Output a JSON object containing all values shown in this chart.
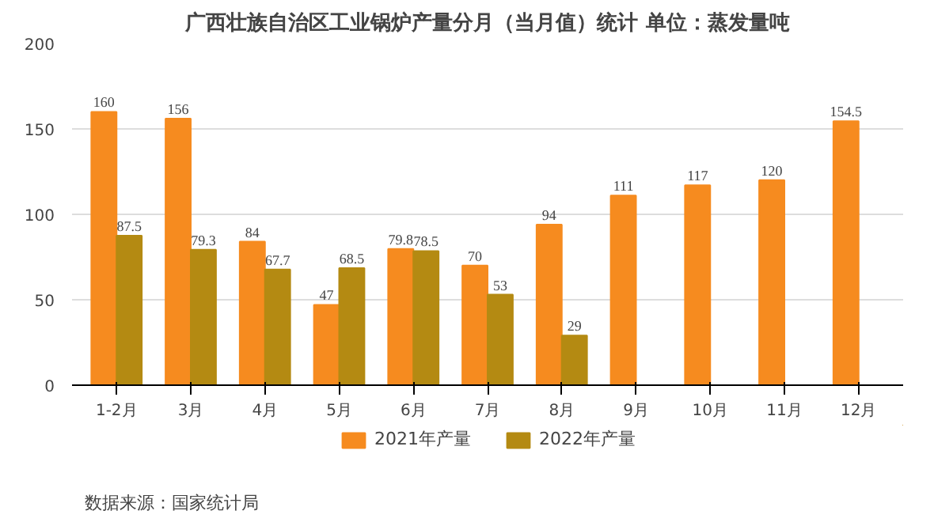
{
  "chart_data": {
    "type": "bar",
    "title": "广西壮族自治区工业锅炉产量分月（当月值）统计 单位：蒸发量吨",
    "categories": [
      "1-2月",
      "3月",
      "4月",
      "5月",
      "6月",
      "7月",
      "8月",
      "9月",
      "10月",
      "11月",
      "12月"
    ],
    "series": [
      {
        "name": "2021年产量",
        "color": "#f68b1f",
        "values": [
          160,
          156,
          84,
          47,
          79.8,
          70,
          94,
          111,
          117,
          120,
          154.5
        ]
      },
      {
        "name": "2022年产量",
        "color": "#b48a12",
        "values": [
          87.5,
          79.3,
          67.7,
          68.5,
          78.5,
          53,
          29,
          null,
          null,
          null,
          null
        ]
      }
    ],
    "ylim": [
      0,
      200
    ],
    "yticks": [
      0,
      50,
      100,
      150,
      200
    ],
    "grid": "y",
    "legend": "bottom",
    "data_labels": true,
    "annotations": [
      "数据来源：国家统计局"
    ]
  }
}
